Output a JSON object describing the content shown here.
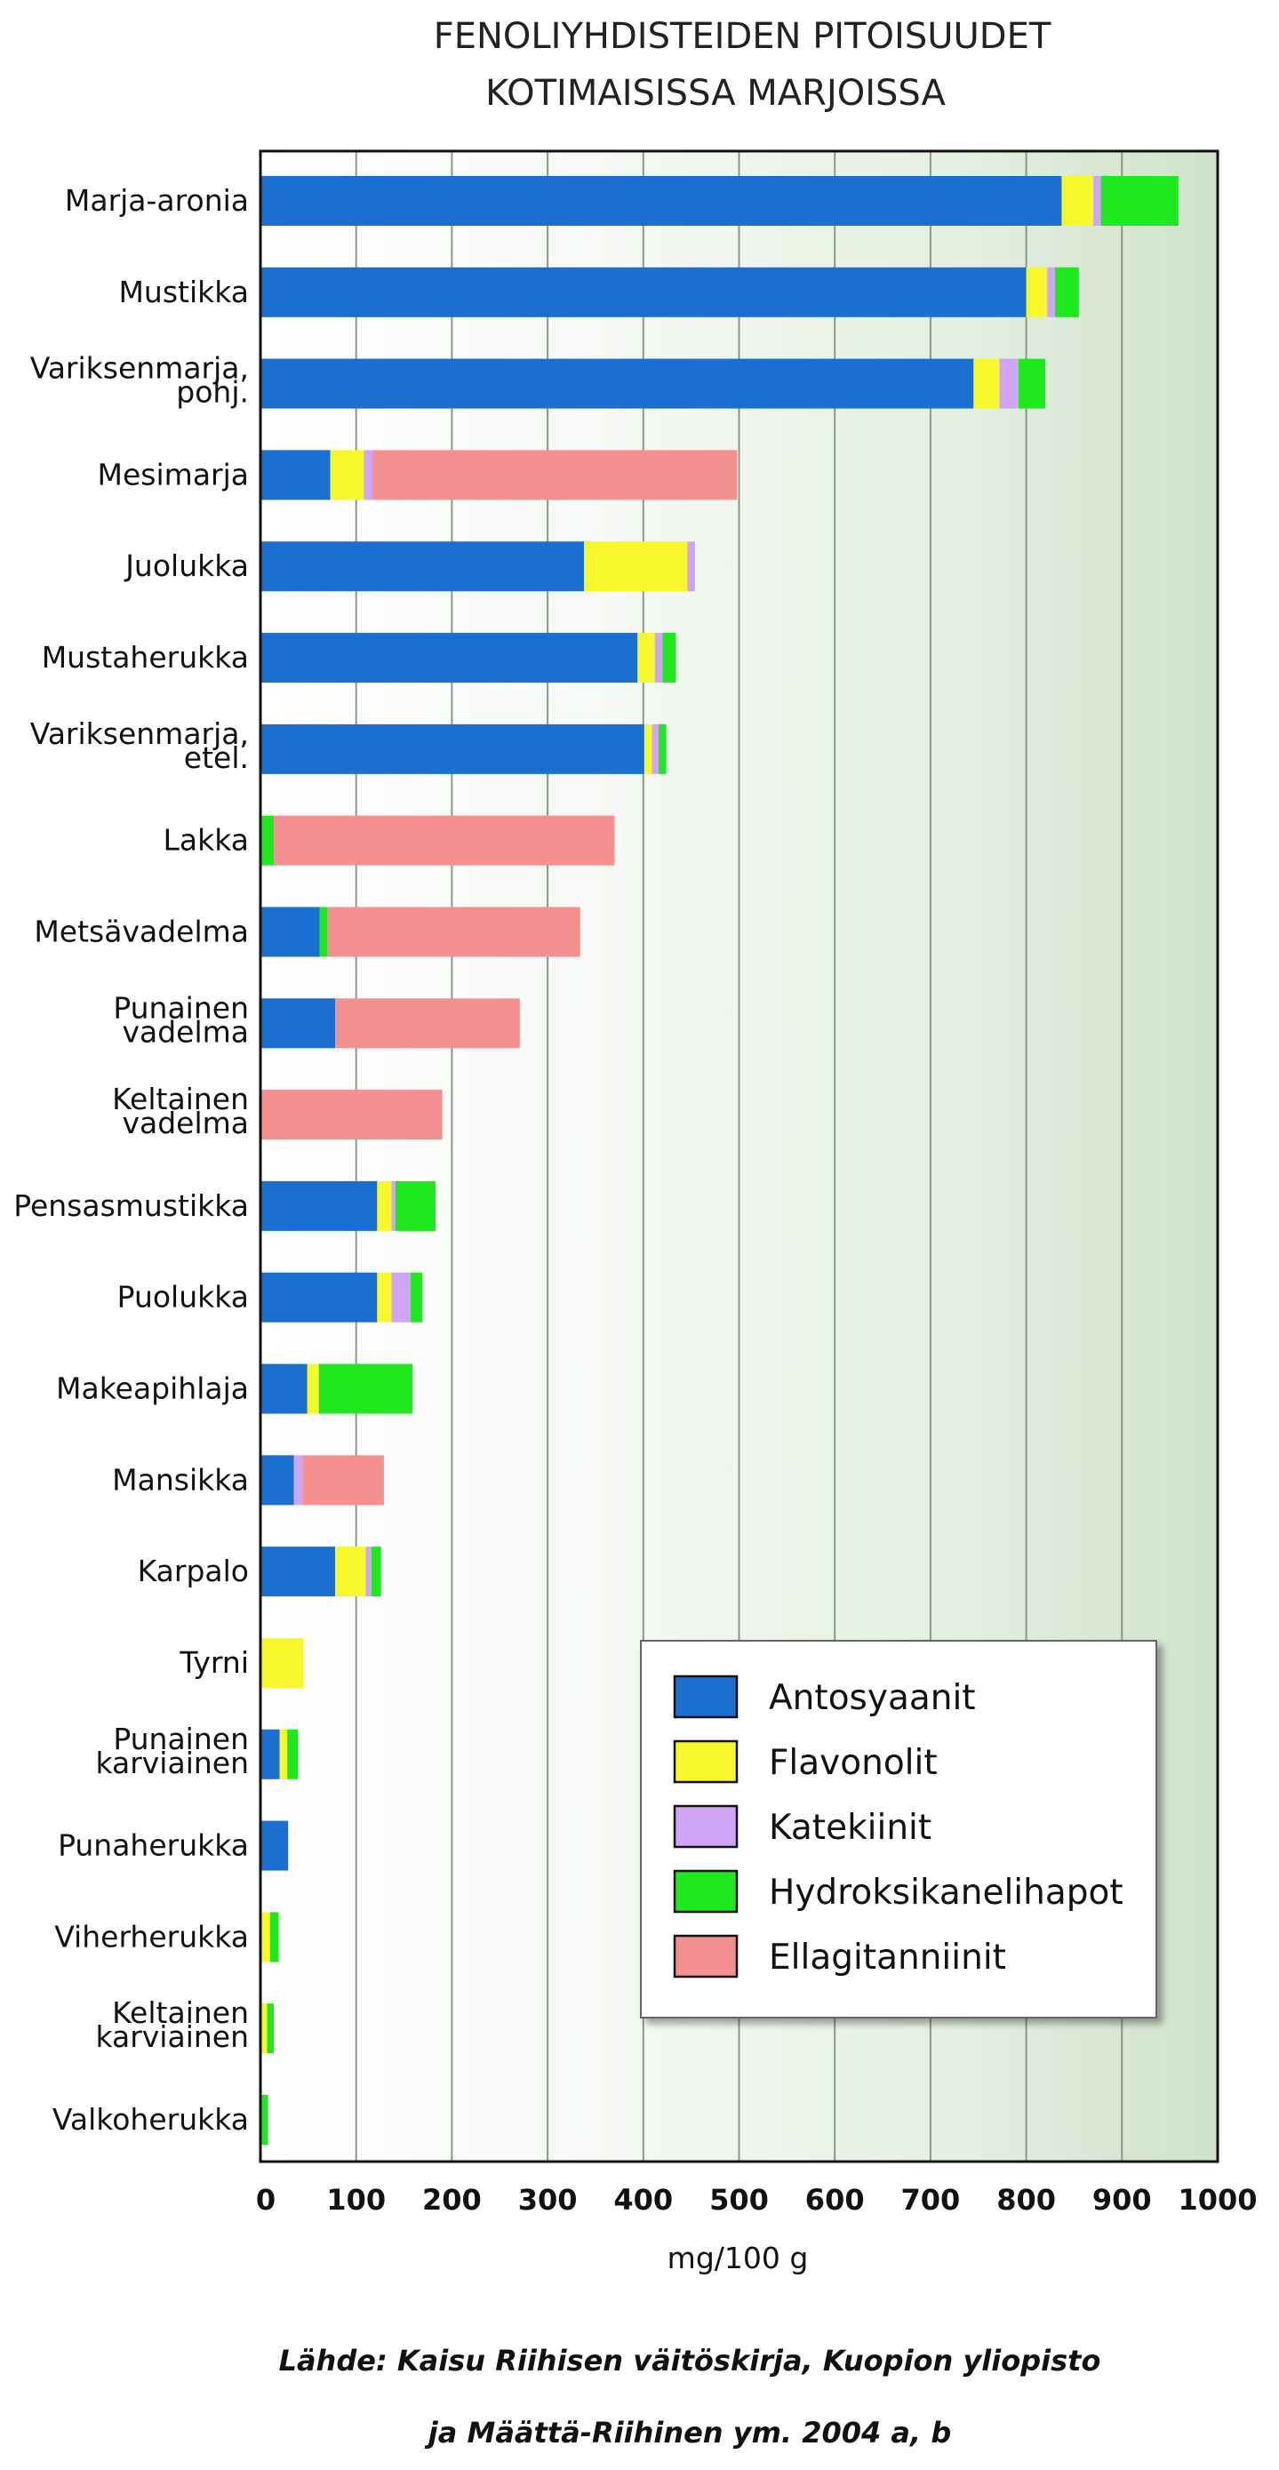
{
  "chart_data": {
    "type": "bar",
    "orientation": "horizontal",
    "stacked": true,
    "title_lines": [
      "FENOLIYHDISTEIDEN PITOISUUDET",
      "KOTIMAISISSA MARJOISSA"
    ],
    "xlabel": "mg/100 g",
    "xlim": [
      0,
      1000
    ],
    "xticks": [
      0,
      100,
      200,
      300,
      400,
      500,
      600,
      700,
      800,
      900,
      1000
    ],
    "grid": true,
    "legend_position": "bottom-right",
    "categories": [
      [
        "Marja-aronia"
      ],
      [
        "Mustikka"
      ],
      [
        "Variksenmarja,",
        "pohj."
      ],
      [
        "Mesimarja"
      ],
      [
        "Juolukka"
      ],
      [
        "Mustaherukka"
      ],
      [
        "Variksenmarja,",
        "etel."
      ],
      [
        "Lakka"
      ],
      [
        "Metsävadelma"
      ],
      [
        "Punainen",
        "vadelma"
      ],
      [
        "Keltainen",
        "vadelma"
      ],
      [
        "Pensasmustikka"
      ],
      [
        "Puolukka"
      ],
      [
        "Makeapihlaja"
      ],
      [
        "Mansikka"
      ],
      [
        "Karpalo"
      ],
      [
        "Tyrni"
      ],
      [
        "Punainen",
        "karviainen"
      ],
      [
        "Punaherukka"
      ],
      [
        "Viherherukka"
      ],
      [
        "Keltainen",
        "karviainen"
      ],
      [
        "Valkoherukka"
      ]
    ],
    "series": [
      {
        "name": "Antosyaanit",
        "color": "#1a6fd0",
        "values": [
          837,
          800,
          745,
          73,
          338,
          394,
          401,
          0,
          62,
          78,
          0,
          122,
          122,
          49,
          35,
          78,
          0,
          20,
          29,
          0,
          0,
          0
        ]
      },
      {
        "name": "Flavonolit",
        "color": "#f7f72a",
        "values": [
          33,
          22,
          27,
          35,
          108,
          18,
          8,
          0,
          0,
          0,
          0,
          15,
          15,
          12,
          0,
          32,
          45,
          8,
          0,
          10,
          7,
          0
        ]
      },
      {
        "name": "Katekiinit",
        "color": "#cfa6f7",
        "values": [
          8,
          8,
          20,
          9,
          8,
          8,
          7,
          0,
          0,
          0,
          0,
          4,
          20,
          0,
          9,
          6,
          0,
          0,
          0,
          0,
          0,
          0
        ]
      },
      {
        "name": "Hydroksikanelihapot",
        "color": "#1ee81e",
        "values": [
          81,
          25,
          28,
          0,
          0,
          14,
          8,
          14,
          8,
          0,
          0,
          42,
          12,
          98,
          0,
          10,
          0,
          11,
          0,
          9,
          7,
          8
        ]
      },
      {
        "name": "Ellagitanniinit",
        "color": "#f59090",
        "values": [
          0,
          0,
          0,
          381,
          0,
          0,
          0,
          356,
          264,
          193,
          190,
          0,
          0,
          0,
          85,
          0,
          0,
          0,
          0,
          0,
          0,
          0
        ]
      }
    ]
  },
  "source": {
    "line1": "Lähde: Kaisu Riihisen väitöskirja, Kuopion yliopisto",
    "line2": "ja Määttä-Riihinen ym. 2004 a, b"
  }
}
